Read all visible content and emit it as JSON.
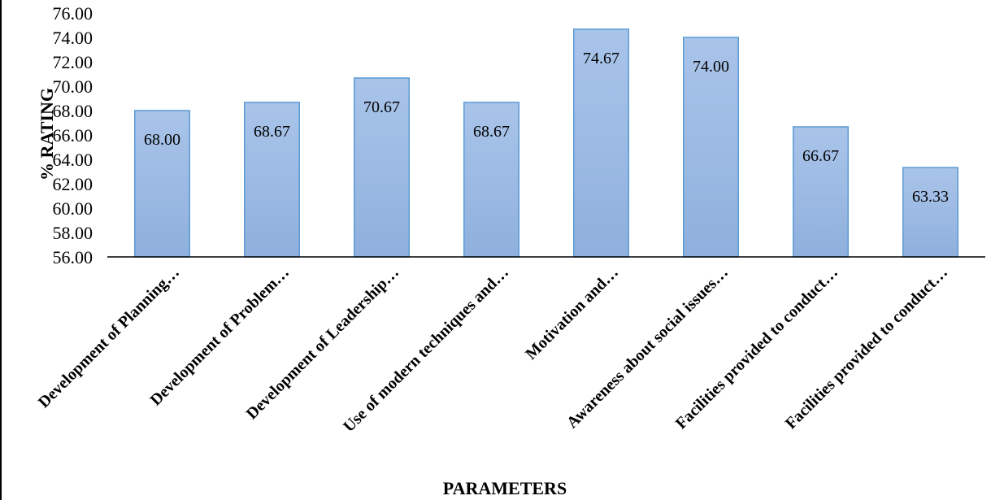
{
  "chart_data": {
    "type": "bar",
    "categories": [
      "Development of Planning…",
      "Development of Problem…",
      "Development of Leadership…",
      "Use of modern techniques and…",
      "Motivation and…",
      "Awareness about social issues…",
      "Facilities provided to conduct…",
      "Facilities provided to conduct…"
    ],
    "values": [
      68.0,
      68.67,
      70.67,
      68.67,
      74.67,
      74.0,
      66.67,
      63.33
    ],
    "data_labels": [
      "68.00",
      "68.67",
      "70.67",
      "68.67",
      "74.67",
      "74.00",
      "66.67",
      "63.33"
    ],
    "y_ticks": [
      "56.00",
      "58.00",
      "60.00",
      "62.00",
      "64.00",
      "66.00",
      "68.00",
      "70.00",
      "72.00",
      "74.00",
      "76.00"
    ],
    "title": "",
    "xlabel": "PARAMETERS",
    "ylabel": "% RATING",
    "ylim": [
      56,
      76
    ],
    "grid": false,
    "legend": "none",
    "colors": {
      "bar_fill_top": "#a9c4e9",
      "bar_fill_bottom": "#8fb0dd",
      "bar_stroke": "#5b9bd5"
    }
  }
}
